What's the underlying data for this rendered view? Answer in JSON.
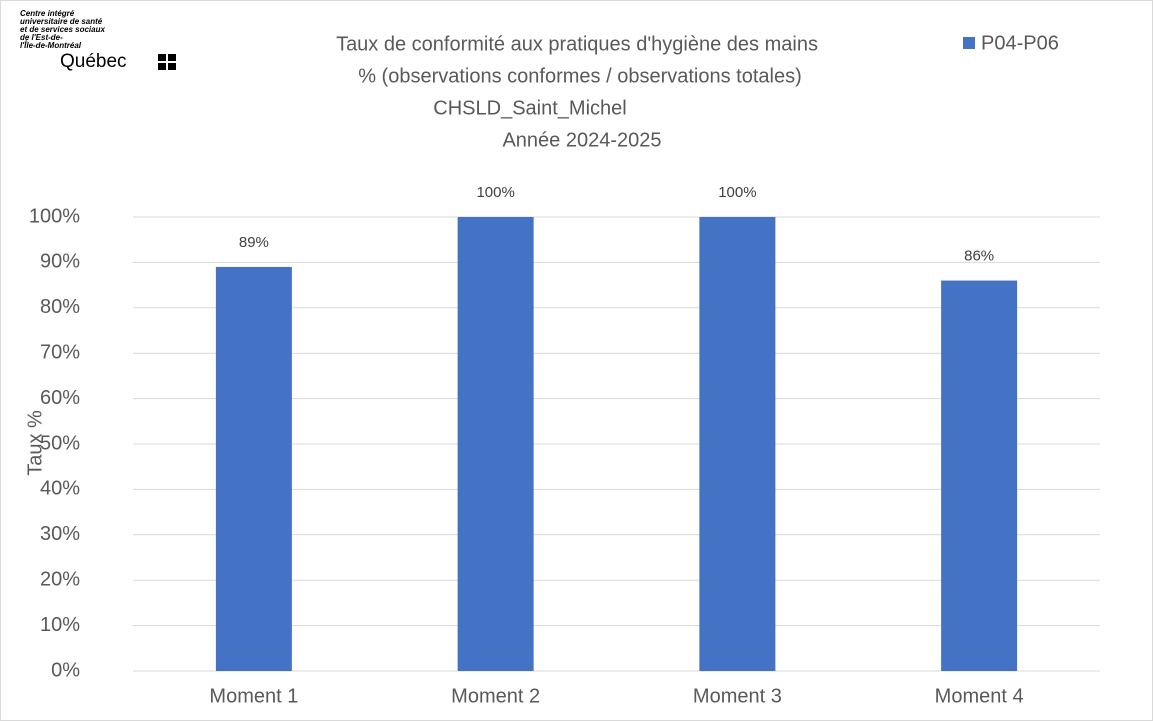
{
  "chart_data": {
    "type": "bar",
    "logo": [
      "Centre intégré",
      "universitaire de santé",
      "et de services sociaux",
      "de l'Est-de-",
      "l'Île-de-Montréal",
      "Québec"
    ],
    "title": [
      "Taux de conformité aux pratiques d'hygiène des mains",
      "% (observations conformes / observations totales)",
      "CHSLD_Saint_Michel",
      "Année 2024-2025"
    ],
    "y_label": "Taux %",
    "categories": [
      "Moment 1",
      "Moment 2",
      "Moment 3",
      "Moment 4"
    ],
    "series": [
      {
        "name": "P04-P06",
        "color": "#4472c4",
        "values": [
          89,
          100,
          100,
          86
        ],
        "value_labels": [
          "89%",
          "100%",
          "100%",
          "86%"
        ]
      }
    ],
    "ylim": [
      0,
      100
    ],
    "yticks": [
      {
        "value": 0,
        "label": "0%"
      },
      {
        "value": 10,
        "label": "10%"
      },
      {
        "value": 20,
        "label": "20%"
      },
      {
        "value": 30,
        "label": "30%"
      },
      {
        "value": 40,
        "label": "40%"
      },
      {
        "value": 50,
        "label": "50%"
      },
      {
        "value": 60,
        "label": "60%"
      },
      {
        "value": 70,
        "label": "70%"
      },
      {
        "value": 80,
        "label": "80%"
      },
      {
        "value": 90,
        "label": "90%"
      },
      {
        "value": 100,
        "label": "100%"
      }
    ],
    "grid": true,
    "legend": "top-right"
  }
}
